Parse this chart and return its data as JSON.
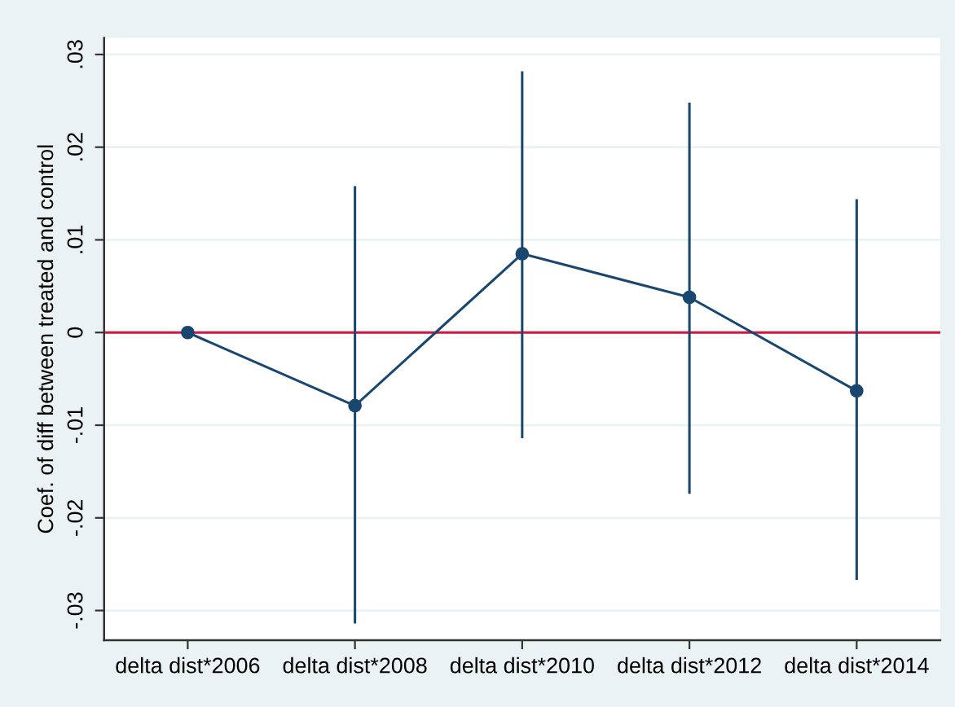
{
  "chart_data": {
    "type": "line",
    "ylabel": "Coef. of diff between treated and control",
    "categories": [
      "delta dist*2006",
      "delta dist*2008",
      "delta dist*2010",
      "delta dist*2012",
      "delta dist*2014"
    ],
    "series": [
      {
        "color": "#1a476f",
        "values": [
          0,
          -0.0079,
          0.0085,
          0.0038,
          -0.0063
        ],
        "errors": [
          null,
          [
            -0.0314,
            0.0158
          ],
          [
            -0.0114,
            0.0282
          ],
          [
            -0.0174,
            0.0248
          ],
          [
            -0.0267,
            0.0144
          ]
        ]
      }
    ],
    "ylim": [
      -0.0332,
      0.0318
    ],
    "yticks": [
      {
        "value": -0.03,
        "label": "-.03"
      },
      {
        "value": -0.02,
        "label": "-.02"
      },
      {
        "value": -0.01,
        "label": "-.01"
      },
      0,
      {
        "value": 0.01,
        "label": ".01"
      },
      {
        "value": 0.02,
        "label": ".02"
      },
      {
        "value": 0.03,
        "label": ".03"
      }
    ],
    "ref_lines": [
      {
        "axis": "y",
        "value": 0,
        "color": "#d0163f"
      }
    ],
    "grid": "y",
    "marker": "circle",
    "line_style": "solid"
  }
}
